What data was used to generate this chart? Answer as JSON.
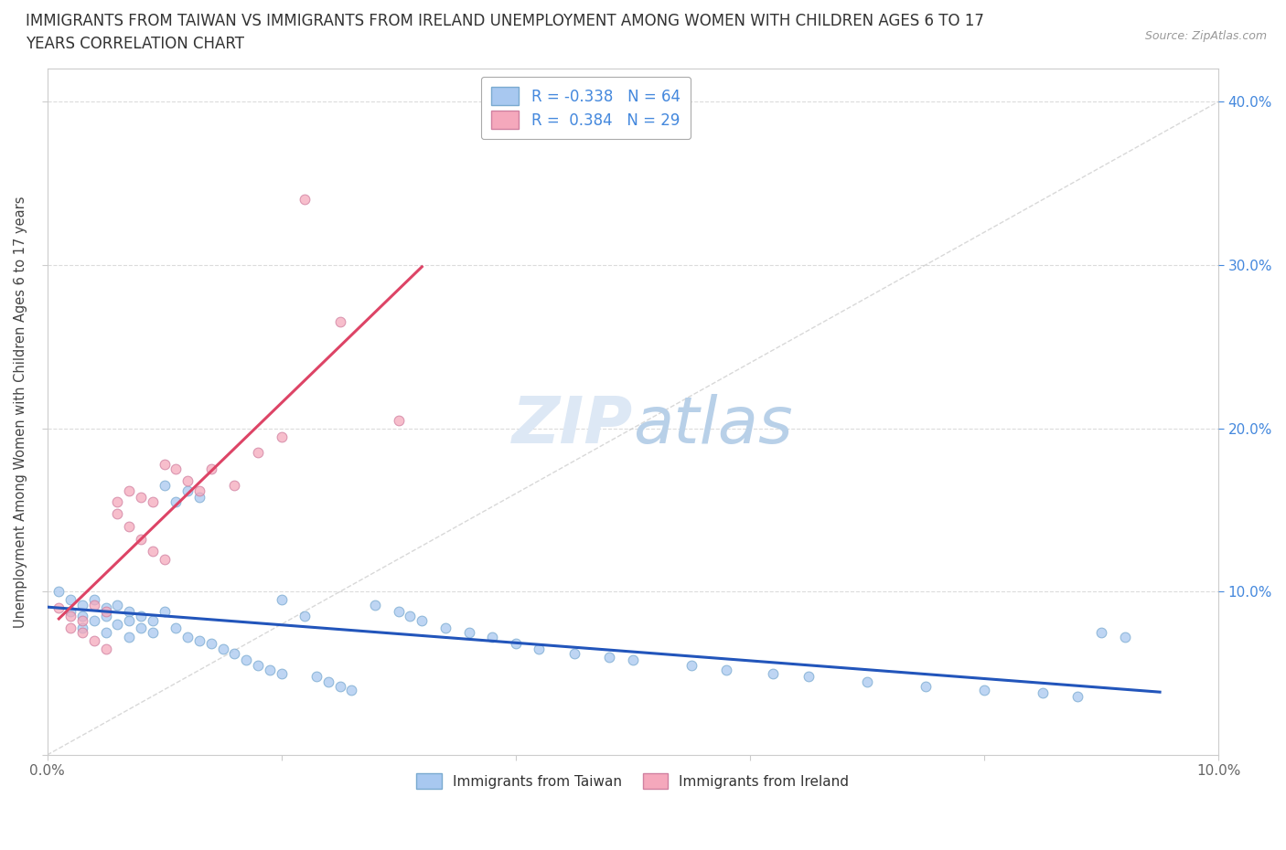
{
  "title_line1": "IMMIGRANTS FROM TAIWAN VS IMMIGRANTS FROM IRELAND UNEMPLOYMENT AMONG WOMEN WITH CHILDREN AGES 6 TO 17",
  "title_line2": "YEARS CORRELATION CHART",
  "source_text": "Source: ZipAtlas.com",
  "ylabel": "Unemployment Among Women with Children Ages 6 to 17 years",
  "xlim": [
    0.0,
    0.1
  ],
  "ylim": [
    0.0,
    0.42
  ],
  "taiwan_color": "#a8c8f0",
  "taiwan_edge_color": "#7aaad0",
  "ireland_color": "#f5a8bc",
  "ireland_edge_color": "#d080a0",
  "taiwan_line_color": "#2255bb",
  "ireland_line_color": "#dd4466",
  "trendline_dash_color": "#c8c8c8",
  "R_taiwan": -0.338,
  "N_taiwan": 64,
  "R_ireland": 0.384,
  "N_ireland": 29,
  "legend_label_taiwan": "Immigrants from Taiwan",
  "legend_label_ireland": "Immigrants from Ireland",
  "right_axis_color": "#4488dd",
  "watermark_color": "#dde8f5",
  "taiwan_x": [
    0.001,
    0.002,
    0.002,
    0.003,
    0.003,
    0.003,
    0.004,
    0.004,
    0.005,
    0.005,
    0.005,
    0.006,
    0.006,
    0.007,
    0.007,
    0.007,
    0.008,
    0.008,
    0.009,
    0.009,
    0.01,
    0.01,
    0.011,
    0.011,
    0.012,
    0.012,
    0.013,
    0.013,
    0.014,
    0.015,
    0.016,
    0.017,
    0.018,
    0.019,
    0.02,
    0.02,
    0.022,
    0.023,
    0.024,
    0.025,
    0.026,
    0.028,
    0.03,
    0.031,
    0.032,
    0.034,
    0.036,
    0.038,
    0.04,
    0.042,
    0.045,
    0.048,
    0.05,
    0.055,
    0.058,
    0.062,
    0.065,
    0.07,
    0.075,
    0.08,
    0.085,
    0.088,
    0.09,
    0.092
  ],
  "taiwan_y": [
    0.1,
    0.095,
    0.088,
    0.092,
    0.085,
    0.078,
    0.095,
    0.082,
    0.09,
    0.085,
    0.075,
    0.092,
    0.08,
    0.088,
    0.082,
    0.072,
    0.085,
    0.078,
    0.082,
    0.075,
    0.165,
    0.088,
    0.155,
    0.078,
    0.162,
    0.072,
    0.158,
    0.07,
    0.068,
    0.065,
    0.062,
    0.058,
    0.055,
    0.052,
    0.095,
    0.05,
    0.085,
    0.048,
    0.045,
    0.042,
    0.04,
    0.092,
    0.088,
    0.085,
    0.082,
    0.078,
    0.075,
    0.072,
    0.068,
    0.065,
    0.062,
    0.06,
    0.058,
    0.055,
    0.052,
    0.05,
    0.048,
    0.045,
    0.042,
    0.04,
    0.038,
    0.036,
    0.075,
    0.072
  ],
  "ireland_x": [
    0.001,
    0.002,
    0.002,
    0.003,
    0.003,
    0.004,
    0.004,
    0.005,
    0.005,
    0.006,
    0.006,
    0.007,
    0.007,
    0.008,
    0.008,
    0.009,
    0.009,
    0.01,
    0.01,
    0.011,
    0.012,
    0.013,
    0.014,
    0.016,
    0.018,
    0.02,
    0.022,
    0.025,
    0.03
  ],
  "ireland_y": [
    0.09,
    0.085,
    0.078,
    0.082,
    0.075,
    0.092,
    0.07,
    0.088,
    0.065,
    0.155,
    0.148,
    0.162,
    0.14,
    0.158,
    0.132,
    0.155,
    0.125,
    0.178,
    0.12,
    0.175,
    0.168,
    0.162,
    0.175,
    0.165,
    0.185,
    0.195,
    0.34,
    0.265,
    0.205
  ]
}
